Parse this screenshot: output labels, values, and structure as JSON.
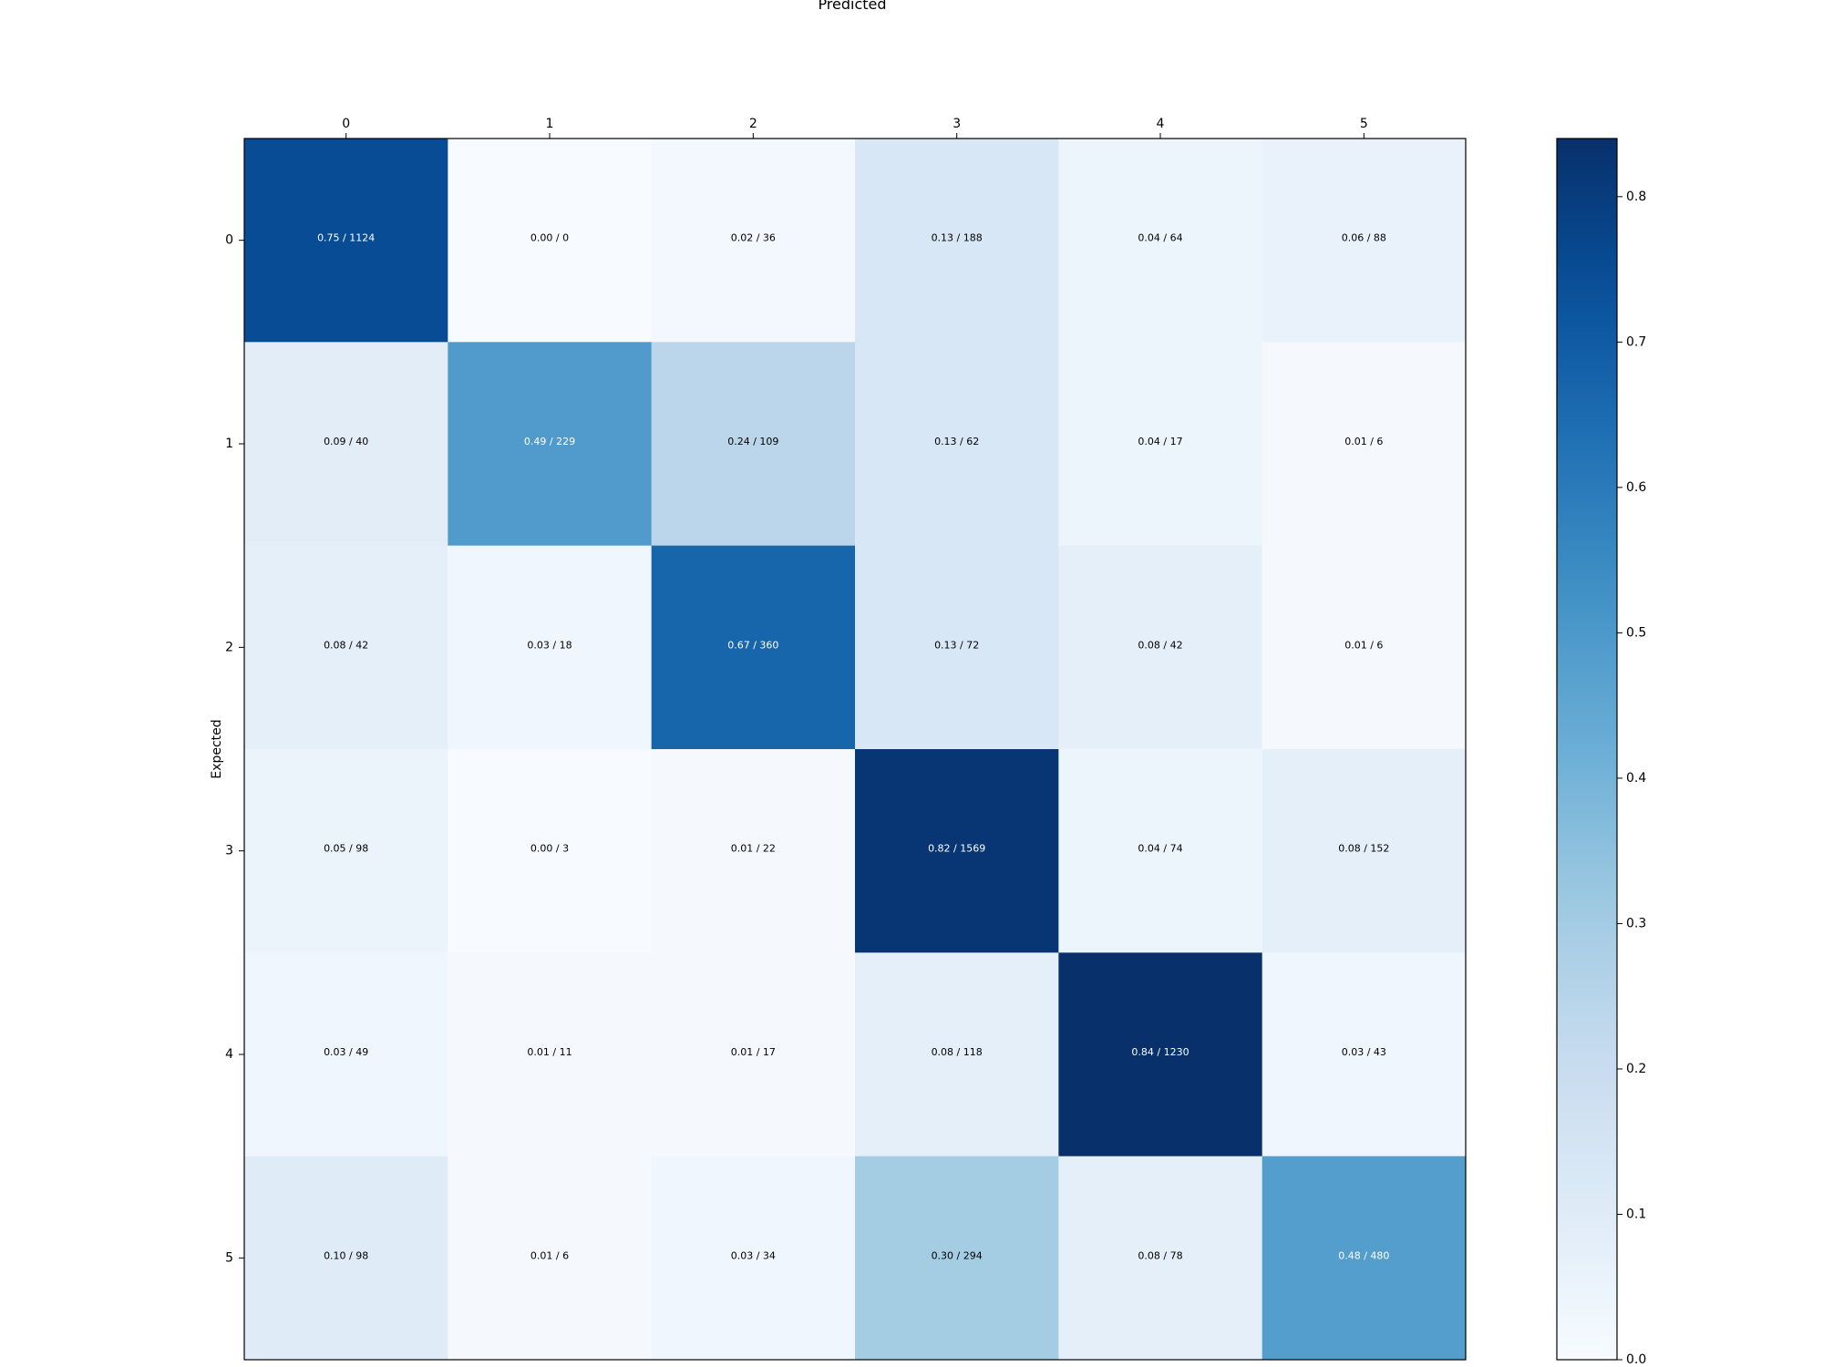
{
  "chart_data": {
    "type": "heatmap",
    "title": "Predicted",
    "xlabel": "Predicted",
    "ylabel": "Expected",
    "x_categories": [
      "0",
      "1",
      "2",
      "3",
      "4",
      "5"
    ],
    "y_categories": [
      "0",
      "1",
      "2",
      "3",
      "4",
      "5"
    ],
    "x_axis_position": "top",
    "colormap": "Blues",
    "colorbar": {
      "range": [
        0,
        0.84
      ],
      "ticks": [
        "0.0",
        "0.1",
        "0.2",
        "0.3",
        "0.4",
        "0.5",
        "0.6",
        "0.7",
        "0.8"
      ],
      "position": "right"
    },
    "values": [
      [
        0.75,
        0.0,
        0.02,
        0.13,
        0.04,
        0.06
      ],
      [
        0.09,
        0.49,
        0.24,
        0.13,
        0.04,
        0.01
      ],
      [
        0.08,
        0.03,
        0.67,
        0.13,
        0.08,
        0.01
      ],
      [
        0.05,
        0.0,
        0.01,
        0.82,
        0.04,
        0.08
      ],
      [
        0.03,
        0.01,
        0.01,
        0.08,
        0.84,
        0.03
      ],
      [
        0.1,
        0.01,
        0.03,
        0.3,
        0.08,
        0.48
      ]
    ],
    "counts": [
      [
        1124,
        0,
        36,
        188,
        64,
        88
      ],
      [
        40,
        229,
        109,
        62,
        17,
        6
      ],
      [
        42,
        18,
        360,
        72,
        42,
        6
      ],
      [
        98,
        3,
        22,
        1569,
        74,
        152
      ],
      [
        49,
        11,
        17,
        118,
        1230,
        43
      ],
      [
        98,
        6,
        34,
        294,
        78,
        480
      ]
    ],
    "cell_labels": [
      [
        "0.75 / 1124",
        "0.00 / 0",
        "0.02 / 36",
        "0.13 / 188",
        "0.04 / 64",
        "0.06 / 88"
      ],
      [
        "0.09 / 40",
        "0.49 / 229",
        "0.24 / 109",
        "0.13 / 62",
        "0.04 / 17",
        "0.01 / 6"
      ],
      [
        "0.08 / 42",
        "0.03 / 18",
        "0.67 / 360",
        "0.13 / 72",
        "0.08 / 42",
        "0.01 / 6"
      ],
      [
        "0.05 / 98",
        "0.00 / 3",
        "0.01 / 22",
        "0.82 / 1569",
        "0.04 / 74",
        "0.08 / 152"
      ],
      [
        "0.03 / 49",
        "0.01 / 11",
        "0.01 / 17",
        "0.08 / 118",
        "0.84 / 1230",
        "0.03 / 43"
      ],
      [
        "0.10 / 98",
        "0.01 / 6",
        "0.03 / 34",
        "0.30 / 294",
        "0.08 / 78",
        "0.48 / 480"
      ]
    ]
  }
}
